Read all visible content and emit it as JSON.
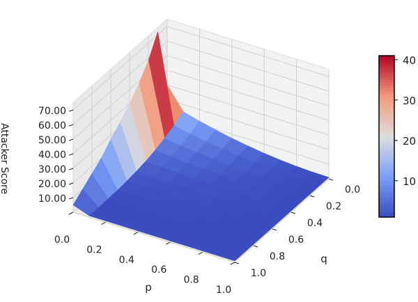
{
  "chart_data": {
    "type": "surface3d",
    "xlabel": "p",
    "ylabel": "q",
    "zlabel": "Attacker Score",
    "x_ticks": [
      "0.0",
      "0.2",
      "0.4",
      "0.6",
      "0.8",
      "1.0"
    ],
    "y_ticks": [
      "0.0",
      "0.2",
      "0.4",
      "0.6",
      "0.8",
      "1.0"
    ],
    "z_ticks": [
      "10.00",
      "20.00",
      "30.00",
      "40.00",
      "50.00",
      "60.00",
      "70.00"
    ],
    "xlim": [
      0,
      1
    ],
    "ylim": [
      0,
      1
    ],
    "zlim": [
      0,
      75
    ],
    "colormap": "coolwarm",
    "colorbar": {
      "ticks": [
        "10",
        "20",
        "30",
        "40"
      ],
      "range": [
        1,
        41
      ]
    },
    "p": [
      0,
      0.1,
      0.2,
      0.3,
      0.4,
      0.5,
      0.6,
      0.7,
      0.8,
      0.9,
      1.0
    ],
    "q": [
      0,
      0.1,
      0.2,
      0.3,
      0.4,
      0.5,
      0.6,
      0.7,
      0.8,
      0.9,
      1.0
    ],
    "z_at_p0": [
      30,
      72,
      58,
      48,
      40,
      33,
      27,
      20,
      15,
      10,
      5
    ],
    "z_at_p_ge_0.1_q0": 15,
    "z_floor": 1
  }
}
